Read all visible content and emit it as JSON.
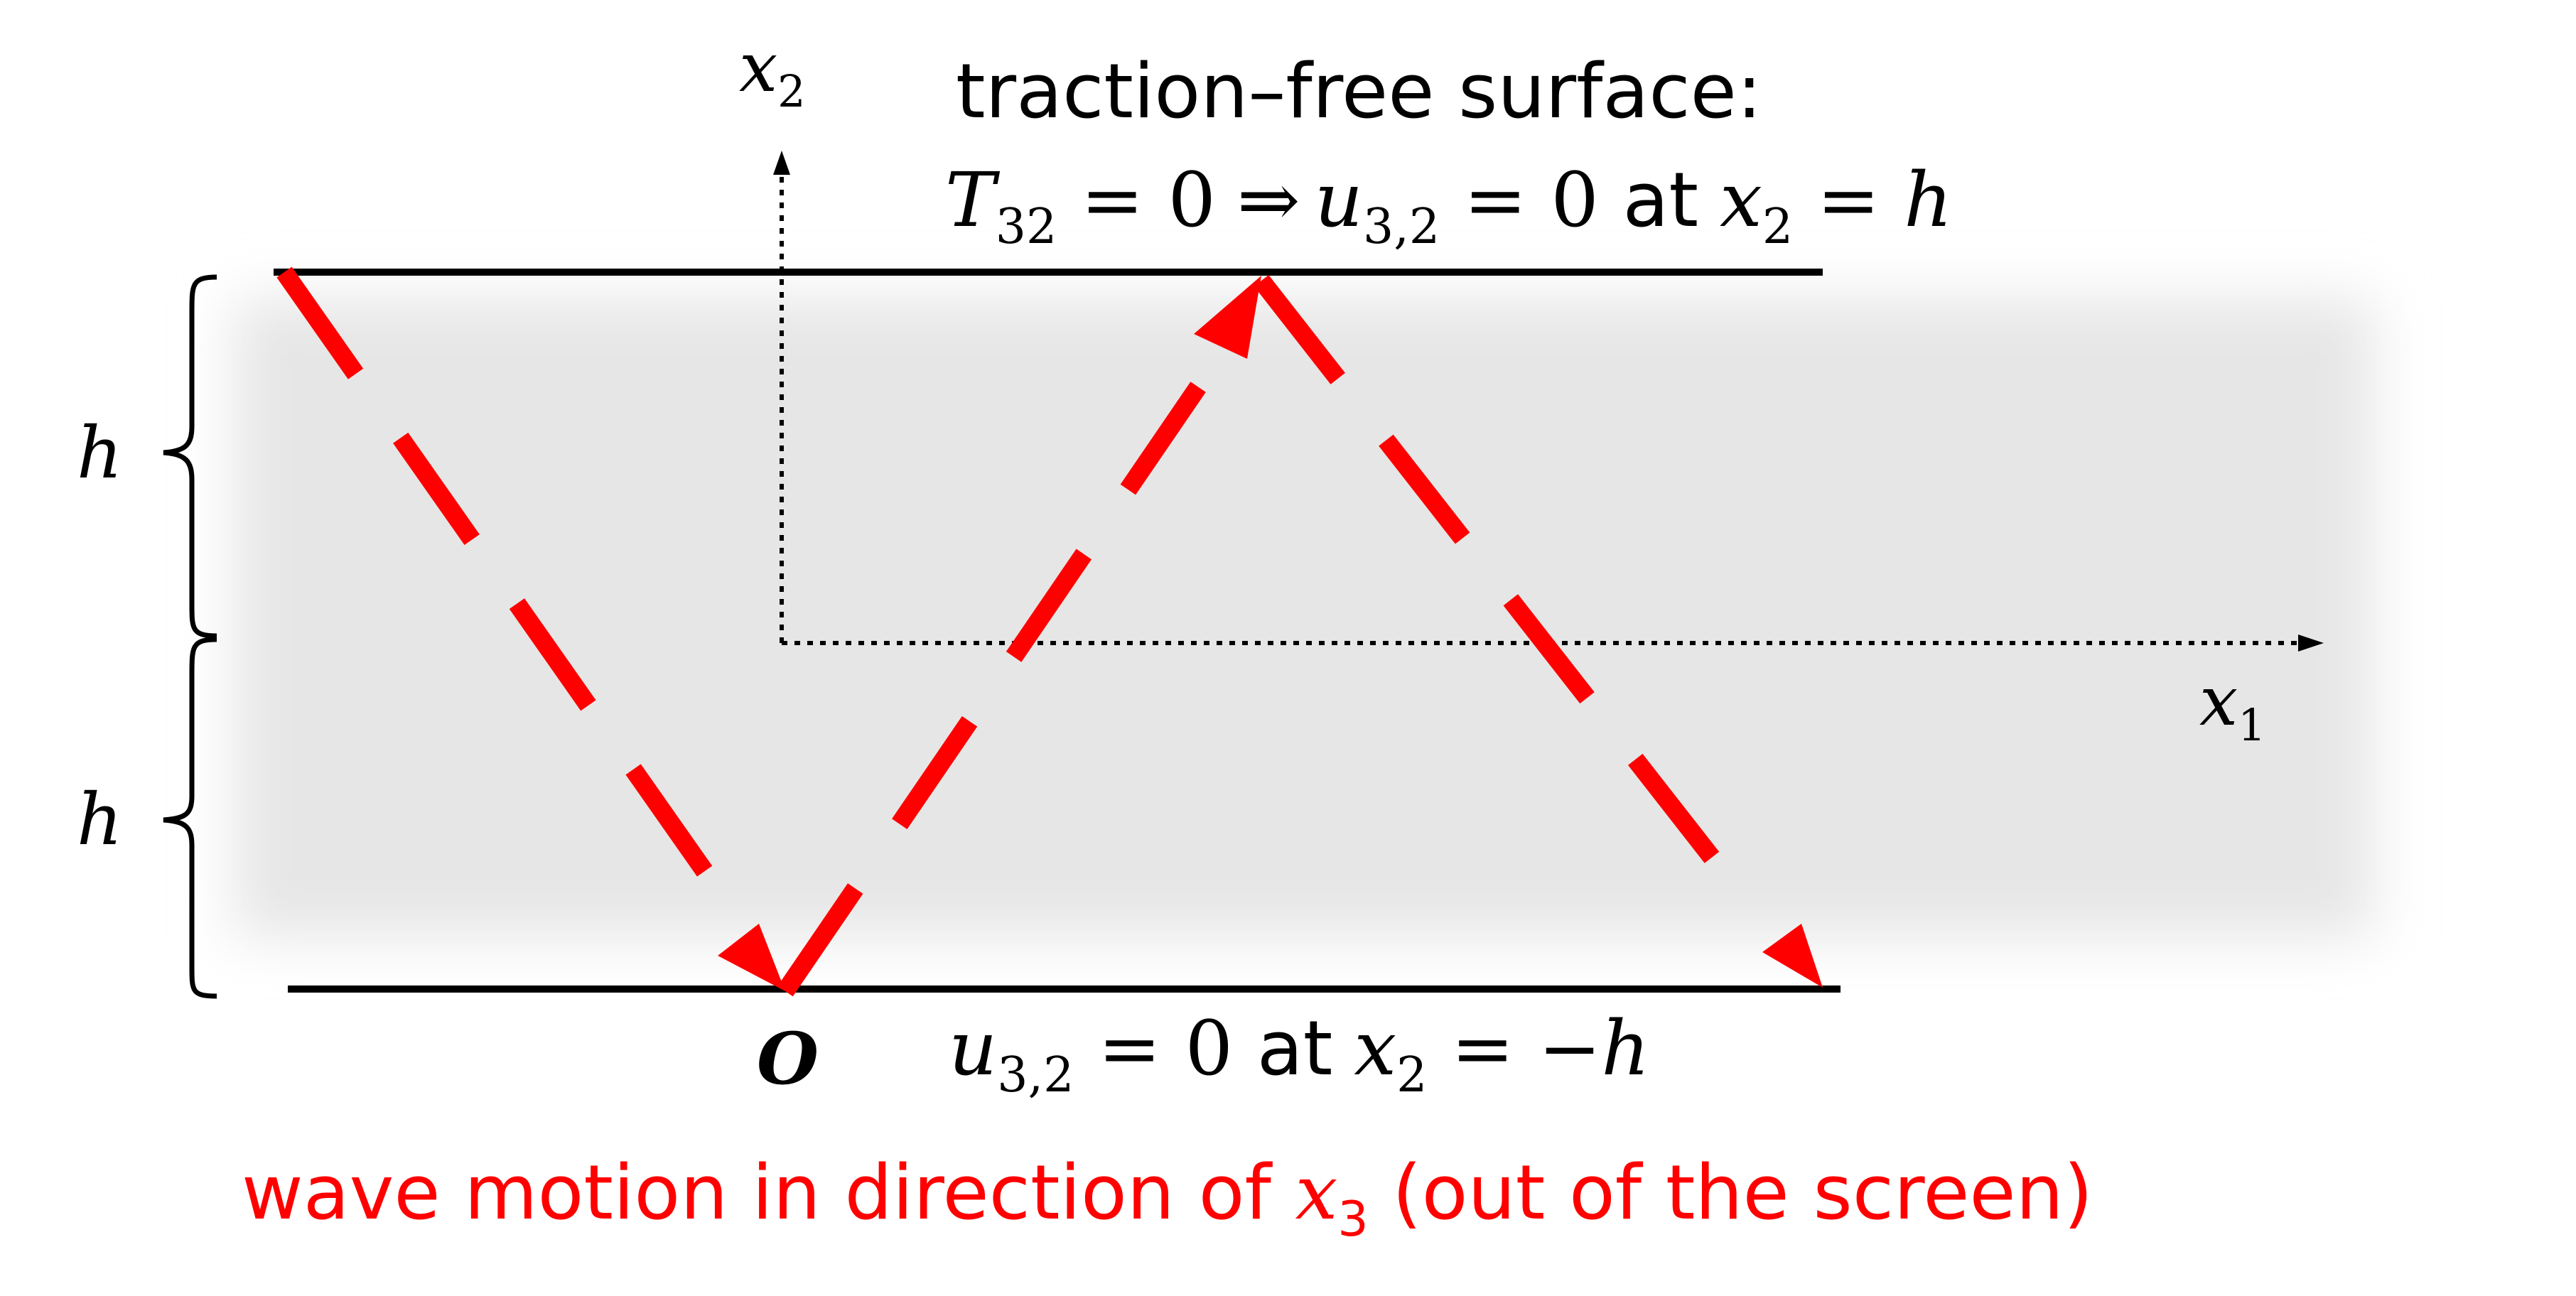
{
  "labels": {
    "x2_axis": {
      "base": "x",
      "sub": "2"
    },
    "x1_axis": {
      "base": "x",
      "sub": "1"
    },
    "top_title": "traction–free surface:",
    "top_condition": {
      "t_base": "T",
      "t_sub": "32",
      "eq_zero": " = 0",
      "implies": "⇒",
      "u_base": "u",
      "u_sub": "3,2",
      "eq_zero_2": " = 0 ",
      "at": "at",
      "x_base": "x",
      "x_sub": "2",
      "eq_h": " = h"
    },
    "bottom_condition": {
      "u_base": "u",
      "u_sub": "3,2",
      "eq_zero": " = 0 ",
      "at": "at",
      "x_base": "x",
      "x_sub": "2",
      "eq_neg_h": " = −h"
    },
    "origin": "O",
    "h_upper": "h",
    "h_lower": "h",
    "caption": {
      "before": "wave motion in direction of ",
      "x_base": "x",
      "x_sub": "3",
      "after": " (out of the screen)"
    }
  },
  "colors": {
    "wave": "#ff0000",
    "caption": "#ff0000",
    "text": "#000000",
    "layer_fill": "#e6e6e6"
  },
  "icons": {
    "wave_path": "dashed-red-arrow-zigzag",
    "brace": "curly-brace"
  }
}
